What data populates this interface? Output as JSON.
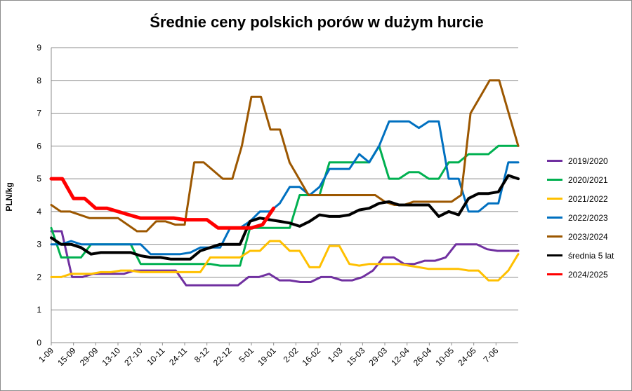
{
  "chart_data": {
    "type": "line",
    "title": "Średnie ceny polskich porów w dużym hurcie",
    "ylabel": "PLN/kg",
    "xlabel": "",
    "ylim": [
      0,
      9
    ],
    "yticks": [
      0,
      1,
      2,
      3,
      4,
      5,
      6,
      7,
      8,
      9
    ],
    "grid": "horizontal",
    "legend_position": "right",
    "num_weeks": 42,
    "x_tick_labels": [
      "1-09",
      "15-09",
      "29-09",
      "13-10",
      "27-10",
      "10-11",
      "24-11",
      "8-12",
      "22-12",
      "5-01",
      "19-01",
      "2-02",
      "16-02",
      "1-03",
      "15-03",
      "29-03",
      "12-04",
      "26-04",
      "10-05",
      "24-05",
      "7-06"
    ],
    "series": [
      {
        "name": "2019/2020",
        "color": "#7030a0",
        "width": 3,
        "values": [
          3.4,
          3.4,
          2.0,
          2.0,
          2.1,
          2.1,
          2.1,
          2.1,
          2.2,
          2.2,
          2.2,
          2.2,
          2.2,
          1.75,
          1.75,
          1.75,
          1.75,
          1.75,
          1.75,
          2.0,
          2.0,
          2.1,
          1.9,
          1.9,
          1.85,
          1.85,
          2.0,
          2.0,
          1.9,
          1.9,
          2.0,
          2.2,
          2.6,
          2.6,
          2.4,
          2.4,
          2.5,
          2.5,
          2.6,
          3.0,
          3.0,
          3.0,
          2.85,
          2.8,
          2.8,
          2.8
        ]
      },
      {
        "name": "2020/2021",
        "color": "#00b050",
        "width": 3,
        "values": [
          3.5,
          2.6,
          2.6,
          2.6,
          3.0,
          3.0,
          3.0,
          3.0,
          3.0,
          2.4,
          2.4,
          2.4,
          2.4,
          2.4,
          2.4,
          2.4,
          2.4,
          2.35,
          2.35,
          2.35,
          3.5,
          3.5,
          3.5,
          3.5,
          3.5,
          4.5,
          4.5,
          4.5,
          5.5,
          5.5,
          5.5,
          5.5,
          5.5,
          6.0,
          5.0,
          5.0,
          5.2,
          5.2,
          5.0,
          5.0,
          5.5,
          5.5,
          5.75,
          5.75,
          5.75,
          6.0,
          6.0,
          6.0
        ]
      },
      {
        "name": "2021/2022",
        "color": "#ffc000",
        "width": 3,
        "values": [
          2.0,
          2.0,
          2.1,
          2.1,
          2.1,
          2.15,
          2.15,
          2.2,
          2.2,
          2.15,
          2.15,
          2.15,
          2.15,
          2.15,
          2.15,
          2.15,
          2.6,
          2.6,
          2.6,
          2.6,
          2.8,
          2.8,
          3.1,
          3.1,
          2.8,
          2.8,
          2.3,
          2.3,
          2.95,
          2.95,
          2.4,
          2.35,
          2.4,
          2.4,
          2.4,
          2.4,
          2.35,
          2.3,
          2.25,
          2.25,
          2.25,
          2.25,
          2.2,
          2.2,
          1.9,
          1.9,
          2.2,
          2.7
        ]
      },
      {
        "name": "2022/2023",
        "color": "#0070c0",
        "width": 3,
        "values": [
          3.0,
          3.0,
          3.1,
          3.0,
          3.0,
          3.0,
          3.0,
          3.0,
          3.0,
          3.0,
          2.7,
          2.7,
          2.7,
          2.7,
          2.75,
          2.9,
          2.9,
          2.9,
          3.5,
          3.5,
          3.7,
          4.0,
          4.0,
          4.25,
          4.75,
          4.75,
          4.5,
          4.75,
          5.3,
          5.3,
          5.3,
          5.75,
          5.5,
          6.0,
          6.75,
          6.75,
          6.75,
          6.55,
          6.75,
          6.75,
          5.0,
          5.0,
          4.0,
          4.0,
          4.25,
          4.25,
          5.5,
          5.5
        ]
      },
      {
        "name": "2023/2024",
        "color": "#9c5700",
        "width": 3,
        "values": [
          4.2,
          4.0,
          4.0,
          3.9,
          3.8,
          3.8,
          3.8,
          3.8,
          3.6,
          3.4,
          3.4,
          3.7,
          3.7,
          3.6,
          3.6,
          5.5,
          5.5,
          5.25,
          5.0,
          5.0,
          6.0,
          7.5,
          7.5,
          6.5,
          6.5,
          5.5,
          5.0,
          4.5,
          4.5,
          4.5,
          4.5,
          4.5,
          4.5,
          4.5,
          4.5,
          4.3,
          4.2,
          4.2,
          4.3,
          4.3,
          4.3,
          4.3,
          4.3,
          4.5,
          7.0,
          7.5,
          8.0,
          8.0,
          7.0,
          6.0
        ]
      },
      {
        "name": "średnia 5 lat",
        "color": "#000000",
        "width": 4,
        "values": [
          3.2,
          3.0,
          3.0,
          2.9,
          2.7,
          2.75,
          2.75,
          2.75,
          2.75,
          2.65,
          2.6,
          2.6,
          2.55,
          2.55,
          2.55,
          2.8,
          2.9,
          3.0,
          3.0,
          3.0,
          3.7,
          3.8,
          3.75,
          3.7,
          3.65,
          3.55,
          3.7,
          3.9,
          3.85,
          3.85,
          3.9,
          4.05,
          4.1,
          4.25,
          4.3,
          4.2,
          4.2,
          4.2,
          4.2,
          3.85,
          4.0,
          3.9,
          4.4,
          4.55,
          4.55,
          4.6,
          5.1,
          5.0
        ]
      },
      {
        "name": "2024/2025",
        "color": "#ff0000",
        "width": 5,
        "values": [
          5.0,
          5.0,
          4.4,
          4.4,
          4.1,
          4.1,
          4.0,
          3.9,
          3.8,
          3.8,
          3.8,
          3.8,
          3.75,
          3.75,
          3.75,
          3.5,
          3.5,
          3.5,
          3.5,
          3.6,
          4.1
        ]
      }
    ]
  }
}
